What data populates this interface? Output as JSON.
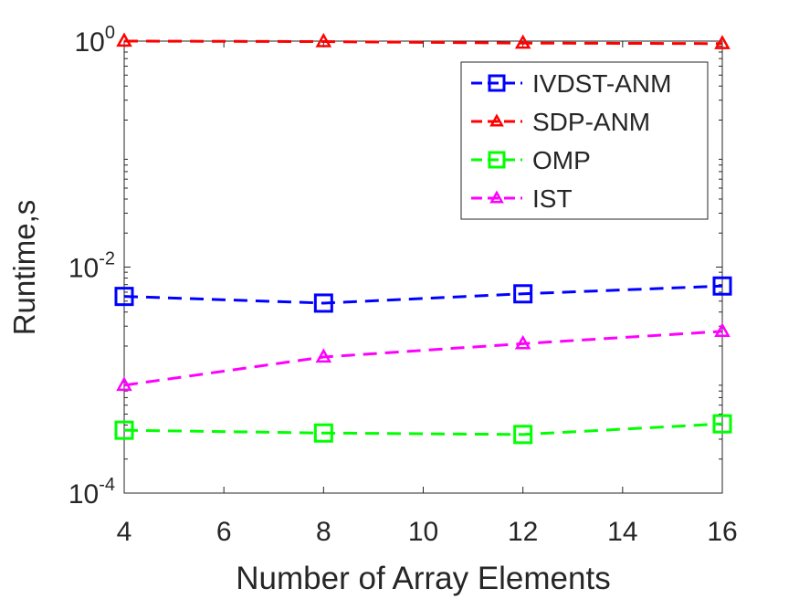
{
  "chart_data": {
    "type": "line",
    "title": "",
    "xlabel": "Number of Array Elements",
    "ylabel": "Runtime,s",
    "yscale": "log",
    "xlim": [
      4,
      16
    ],
    "ylim": [
      0.0001,
      1
    ],
    "x_ticks": [
      4,
      6,
      8,
      10,
      12,
      14,
      16
    ],
    "x_tick_labels": [
      "4",
      "6",
      "8",
      "10",
      "12",
      "14",
      "16"
    ],
    "y_ticks": [
      {
        "value": 0.0001,
        "base": "10",
        "exp": "-4"
      },
      {
        "value": 0.01,
        "base": "10",
        "exp": "-2"
      },
      {
        "value": 1,
        "base": "10",
        "exp": "0"
      }
    ],
    "legend_position": "top-right",
    "x": [
      4,
      8,
      12,
      16
    ],
    "series": [
      {
        "name": "IVDST-ANM",
        "color": "#0000ff",
        "marker": "square",
        "values": [
          0.0055,
          0.0048,
          0.0058,
          0.0068
        ]
      },
      {
        "name": "SDP-ANM",
        "color": "#ff0000",
        "marker": "triangle",
        "values": [
          1.0,
          0.99,
          0.96,
          0.95
        ]
      },
      {
        "name": "OMP",
        "color": "#00ff00",
        "marker": "square",
        "values": [
          0.00036,
          0.00034,
          0.00033,
          0.00041
        ]
      },
      {
        "name": "IST",
        "color": "#ff00ff",
        "marker": "triangle",
        "values": [
          0.0009,
          0.0016,
          0.0021,
          0.0027
        ]
      }
    ]
  }
}
